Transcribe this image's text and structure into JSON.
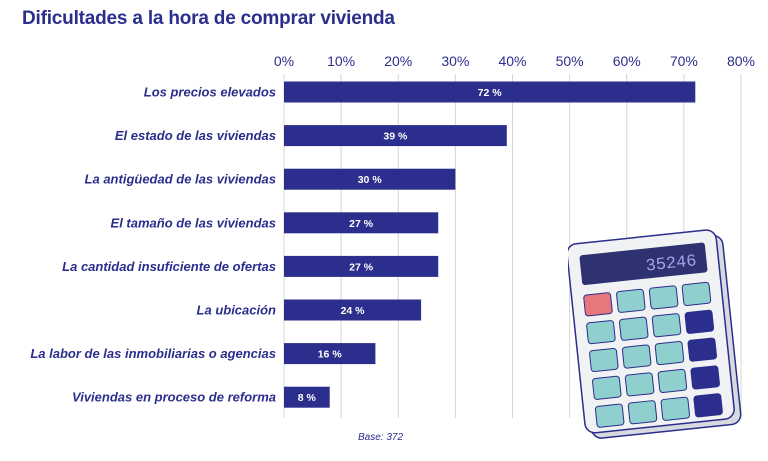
{
  "title": "Dificultades a la hora de comprar vivienda",
  "base_note": "Base: 372",
  "colors": {
    "bar": "#2b2e8c",
    "text": "#2b2e8c",
    "grid": "#d4d4d4"
  },
  "calculator": {
    "display": "35246"
  },
  "chart_data": {
    "type": "bar",
    "orientation": "horizontal",
    "categories": [
      "Los precios elevados",
      "El estado de las viviendas",
      "La antigüedad de las viviendas",
      "El tamaño de las viviendas",
      "La cantidad insuficiente de ofertas",
      "La ubicación",
      "La labor de las inmobiliarias o agencias",
      "Viviendas en proceso de reforma"
    ],
    "values": [
      72,
      39,
      30,
      27,
      27,
      24,
      16,
      8
    ],
    "value_labels": [
      "72 %",
      "39 %",
      "30 %",
      "27 %",
      "27 %",
      "24 %",
      "16 %",
      "8 %"
    ],
    "xlim": [
      0,
      80
    ],
    "ticks": [
      0,
      10,
      20,
      30,
      40,
      50,
      60,
      70,
      80
    ],
    "tick_labels": [
      "0%",
      "10%",
      "20%",
      "30%",
      "40%",
      "50%",
      "60%",
      "70%",
      "80%"
    ],
    "axis_position": "top",
    "grid": true
  }
}
